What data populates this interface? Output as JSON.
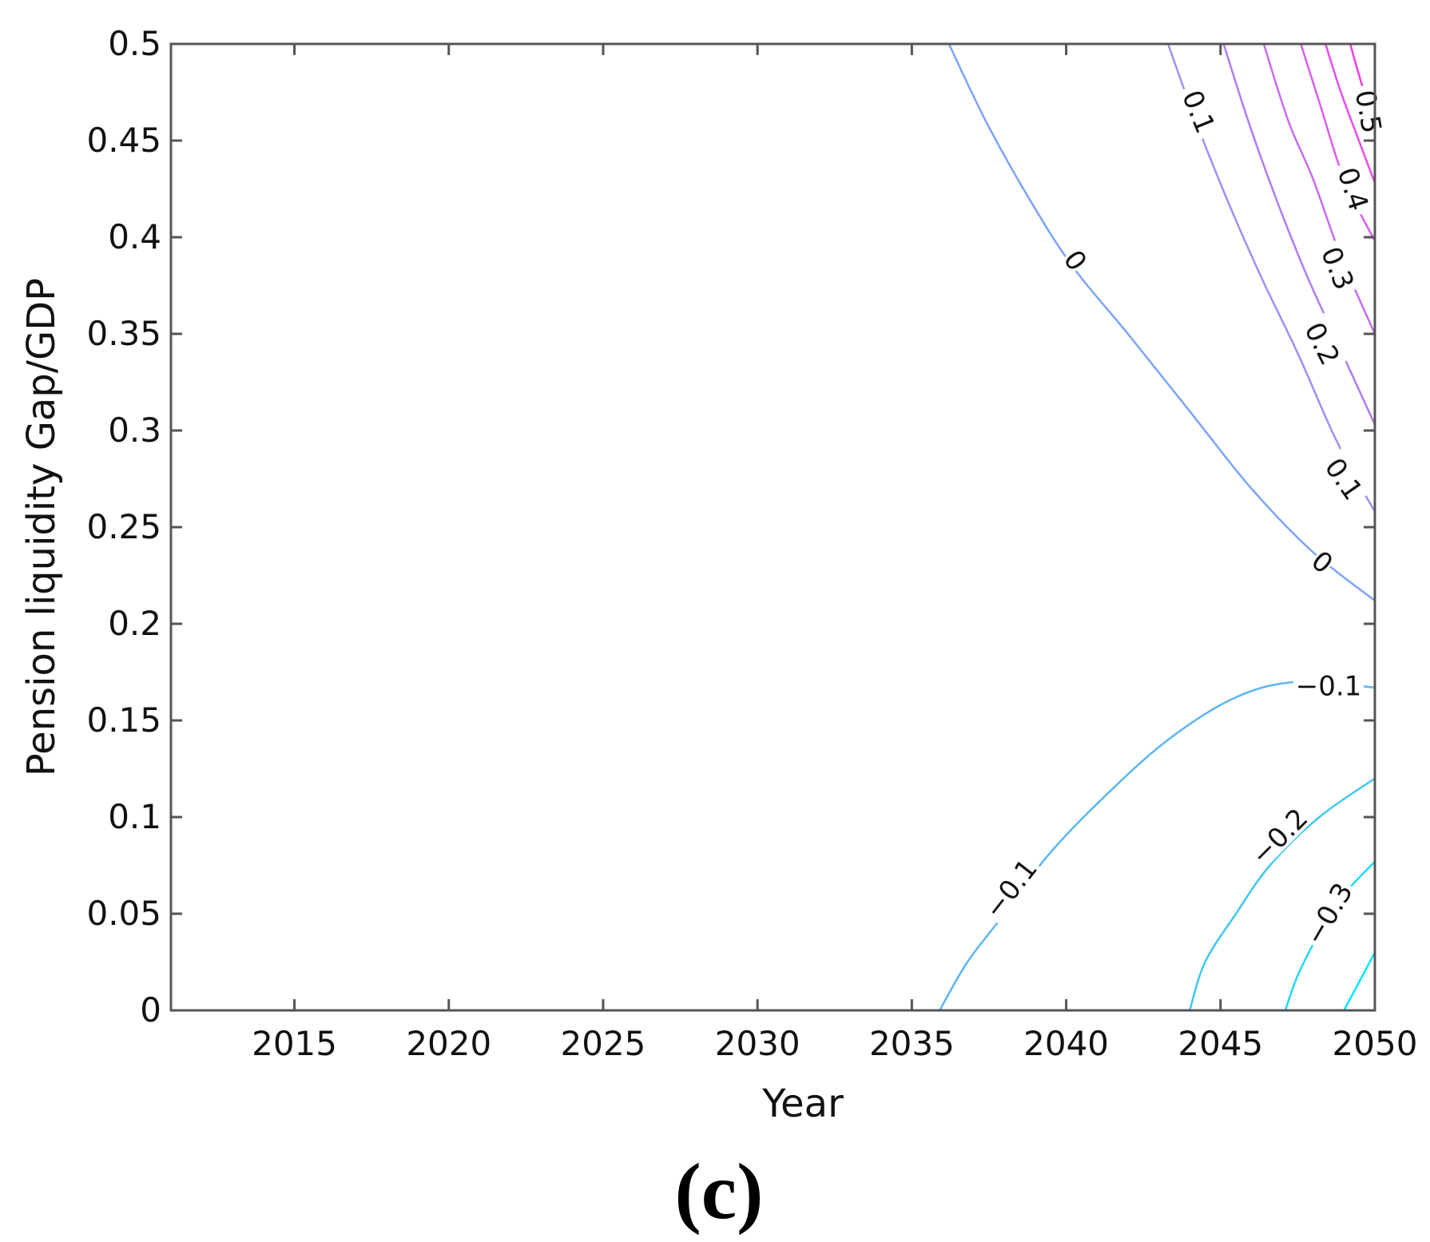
{
  "chart_data": {
    "type": "contour",
    "title": "",
    "xlabel": "Year",
    "ylabel": "Pension liquidity Gap/GDP",
    "xlim": [
      2011,
      2050
    ],
    "ylim": [
      0,
      0.5
    ],
    "xticks": [
      2015,
      2020,
      2025,
      2030,
      2035,
      2040,
      2045,
      2050
    ],
    "yticks": [
      0,
      0.05,
      0.1,
      0.15,
      0.2,
      0.25,
      0.3,
      0.35,
      0.4,
      0.45,
      0.5
    ],
    "x_tick_labels": [
      "2015",
      "2020",
      "2025",
      "2030",
      "2035",
      "2040",
      "2045",
      "2050"
    ],
    "y_tick_labels": [
      "0",
      "0.05",
      "0.1",
      "0.15",
      "0.2",
      "0.25",
      "0.3",
      "0.35",
      "0.4",
      "0.45",
      "0.5"
    ],
    "grid": false,
    "levels": [
      {
        "label": "−0.3",
        "color": "#00e5ff",
        "points": [
          [
            2049.0,
            0
          ],
          [
            2049.4,
            0.012
          ],
          [
            2050,
            0.03
          ]
        ]
      },
      {
        "label": "−0.3",
        "color": "#21d8f5",
        "points": [
          [
            2047.1,
            0
          ],
          [
            2047.5,
            0.018
          ],
          [
            2048.2,
            0.04
          ],
          [
            2049.0,
            0.06
          ],
          [
            2050,
            0.077
          ]
        ]
      },
      {
        "label": "−0.2",
        "color": "#3fc6f2",
        "points": [
          [
            2044.0,
            0
          ],
          [
            2044.5,
            0.025
          ],
          [
            2045.5,
            0.05
          ],
          [
            2046.6,
            0.075
          ],
          [
            2048.2,
            0.1
          ],
          [
            2050,
            0.12
          ]
        ]
      },
      {
        "label": "−0.1",
        "color": "#5bb6f4",
        "points": [
          [
            2035.9,
            0
          ],
          [
            2036.8,
            0.025
          ],
          [
            2038.0,
            0.05
          ],
          [
            2039.4,
            0.08
          ],
          [
            2041.2,
            0.11
          ],
          [
            2043.3,
            0.14
          ],
          [
            2045.5,
            0.162
          ],
          [
            2047.5,
            0.17
          ],
          [
            2050,
            0.167
          ]
        ]
      },
      {
        "label": "0",
        "color": "#7aa4f6",
        "points": [
          [
            2036.2,
            0.5
          ],
          [
            2037.4,
            0.46
          ],
          [
            2038.8,
            0.42
          ],
          [
            2040.2,
            0.385
          ],
          [
            2042.0,
            0.35
          ],
          [
            2044.0,
            0.31
          ],
          [
            2046.0,
            0.27
          ],
          [
            2048.0,
            0.237
          ],
          [
            2050,
            0.212
          ]
        ]
      },
      {
        "label": "0.1",
        "color": "#9f8ff4",
        "points": [
          [
            2043.3,
            0.5
          ],
          [
            2044.2,
            0.46
          ],
          [
            2045.2,
            0.42
          ],
          [
            2046.3,
            0.38
          ],
          [
            2047.5,
            0.34
          ],
          [
            2048.6,
            0.3
          ],
          [
            2049.4,
            0.275
          ],
          [
            2050,
            0.258
          ]
        ]
      },
      {
        "label": "0.2",
        "color": "#b27cf2",
        "points": [
          [
            2045.1,
            0.5
          ],
          [
            2045.9,
            0.46
          ],
          [
            2046.8,
            0.42
          ],
          [
            2047.8,
            0.38
          ],
          [
            2048.8,
            0.345
          ],
          [
            2050,
            0.303
          ]
        ]
      },
      {
        "label": "0.3",
        "color": "#c76cf0",
        "points": [
          [
            2046.4,
            0.5
          ],
          [
            2047.2,
            0.46
          ],
          [
            2048.0,
            0.43
          ],
          [
            2048.9,
            0.39
          ],
          [
            2050,
            0.35
          ]
        ]
      },
      {
        "label": "0.4",
        "color": "#da5ced",
        "points": [
          [
            2047.6,
            0.5
          ],
          [
            2048.2,
            0.47
          ],
          [
            2049.0,
            0.43
          ],
          [
            2050,
            0.398
          ]
        ]
      },
      {
        "label": "0.5",
        "color": "#ea4ce8",
        "points": [
          [
            2048.4,
            0.5
          ],
          [
            2048.9,
            0.475
          ],
          [
            2049.6,
            0.445
          ],
          [
            2050,
            0.428
          ]
        ]
      },
      {
        "label": "",
        "color": "#f23de6",
        "points": [
          [
            2049.2,
            0.5
          ],
          [
            2049.6,
            0.478
          ],
          [
            2050,
            0.462
          ]
        ]
      }
    ],
    "contour_labels": [
      {
        "text": "0.1",
        "x": 2044.3,
        "y": 0.465,
        "angle": 68
      },
      {
        "text": "0.5",
        "x": 2049.8,
        "y": 0.465,
        "angle": 80
      },
      {
        "text": "0.4",
        "x": 2049.3,
        "y": 0.425,
        "angle": 72
      },
      {
        "text": "0.3",
        "x": 2048.8,
        "y": 0.384,
        "angle": 68
      },
      {
        "text": "0.2",
        "x": 2048.3,
        "y": 0.345,
        "angle": 63
      },
      {
        "text": "0",
        "x": 2040.3,
        "y": 0.388,
        "angle": 55
      },
      {
        "text": "0.1",
        "x": 2049.0,
        "y": 0.275,
        "angle": 55
      },
      {
        "text": "0",
        "x": 2048.3,
        "y": 0.232,
        "angle": 40
      },
      {
        "text": "−0.1",
        "x": 2048.5,
        "y": 0.168,
        "angle": 0
      },
      {
        "text": "−0.1",
        "x": 2038.2,
        "y": 0.063,
        "angle": -52
      },
      {
        "text": "−0.2",
        "x": 2046.9,
        "y": 0.09,
        "angle": -45
      },
      {
        "text": "−0.3",
        "x": 2048.5,
        "y": 0.05,
        "angle": -60
      }
    ]
  },
  "panel_label": "(c)"
}
